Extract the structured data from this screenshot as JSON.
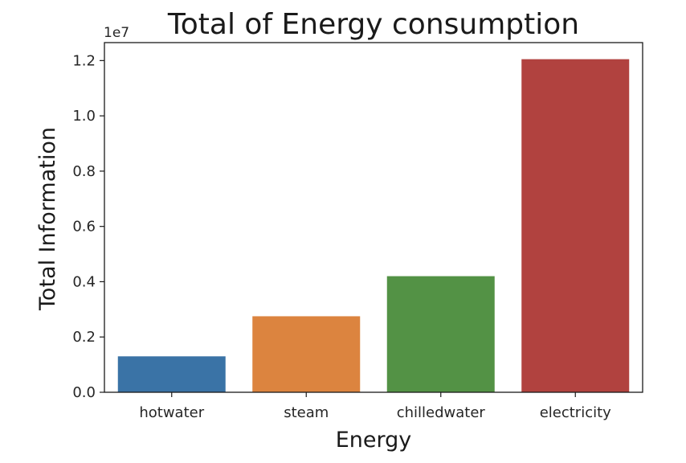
{
  "chart_data": {
    "type": "bar",
    "title": "Total of Energy consumption",
    "xlabel": "Energy",
    "ylabel": "Total Information",
    "y_offset_label": "1e7",
    "y_scale": 10000000,
    "categories": [
      "hotwater",
      "steam",
      "chilledwater",
      "electricity"
    ],
    "values": [
      1300000,
      2750000,
      4200000,
      12050000
    ],
    "colors": [
      "#3a73a6",
      "#dc843f",
      "#539245",
      "#b1423f"
    ],
    "ylim": [
      0,
      12650000
    ],
    "yticks": [
      0,
      2000000,
      4000000,
      6000000,
      8000000,
      10000000,
      12000000
    ],
    "ytick_labels": [
      "0.0",
      "0.2",
      "0.4",
      "0.6",
      "0.8",
      "1.0",
      "1.2"
    ],
    "grid": false,
    "legend": "none"
  }
}
